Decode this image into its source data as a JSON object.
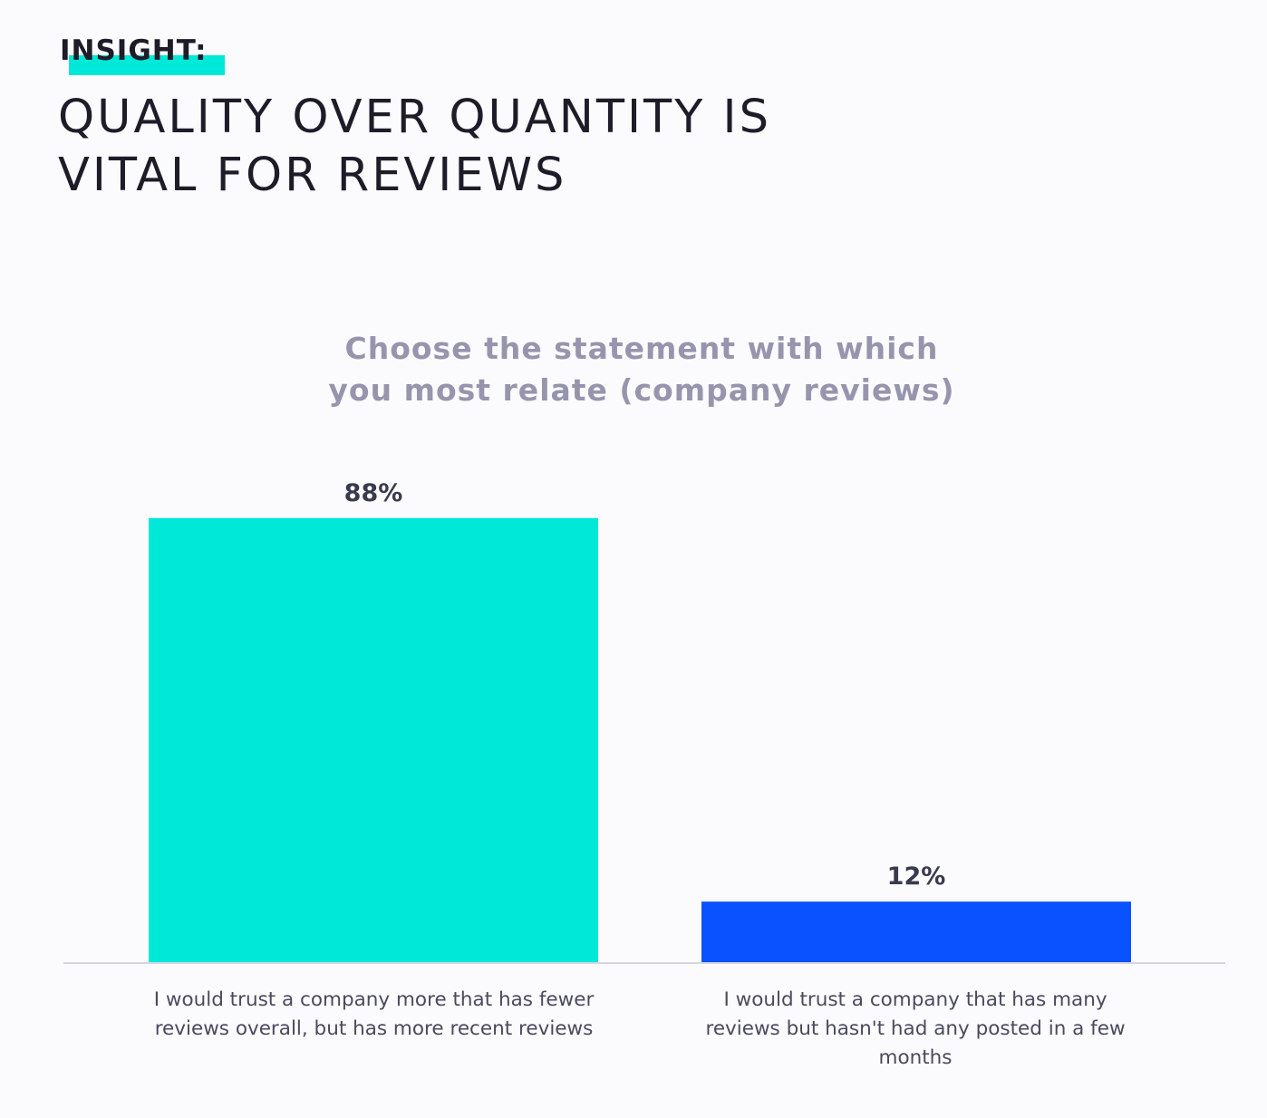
{
  "header": {
    "kicker": "INSIGHT:",
    "headline": "QUALITY OVER QUANTITY IS VITAL FOR REVIEWS"
  },
  "colors": {
    "accent": "#00e8d8",
    "bar_primary": "#00e8d8",
    "bar_secondary": "#0a52ff",
    "title_gray": "#9795ad",
    "baseline": "#d6d6e2"
  },
  "chart_data": {
    "type": "bar",
    "title": "Choose the statement with which you most relate (company reviews)",
    "categories": [
      "I would trust a company more that has fewer reviews overall, but has more recent reviews",
      "I would trust a company that has many reviews but hasn't had any posted in a few months"
    ],
    "values": [
      88,
      12
    ],
    "value_labels": [
      "88%",
      "12%"
    ],
    "bar_colors": [
      "#00e8d8",
      "#0a52ff"
    ],
    "unit": "%",
    "ylim": [
      0,
      100
    ],
    "grid": false,
    "legend": "none"
  }
}
